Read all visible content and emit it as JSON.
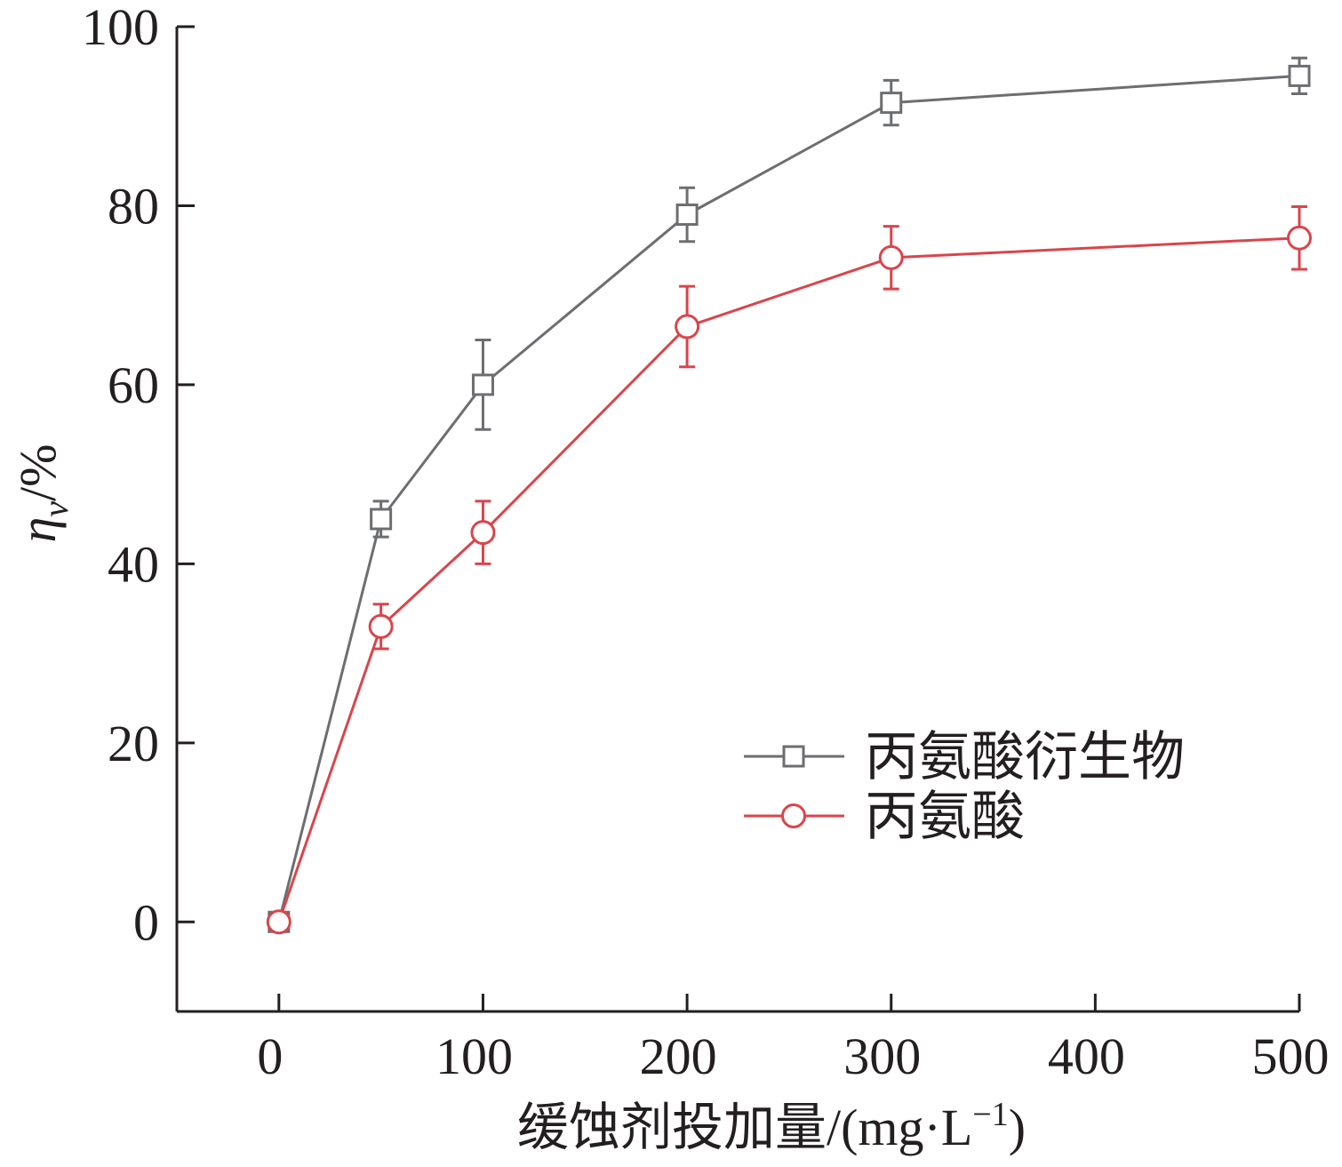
{
  "chart_data": {
    "type": "line",
    "xlabel": "缓蚀剂投加量/(mg·L⁻¹)",
    "ylabel": "ηv/%",
    "ylabel_parts": {
      "symbol": "η",
      "subscript": "v",
      "unit": "/%"
    },
    "xlabel_parts": {
      "main": "缓蚀剂投加量/(mg·L",
      "superscript": "−1",
      "close": ")"
    },
    "x_tick_labels": [
      "0",
      "100",
      "200",
      "300",
      "400",
      "500"
    ],
    "y_ticks": [
      0,
      20,
      40,
      60,
      80,
      100
    ],
    "xlim": [
      -0.5,
      5
    ],
    "ylim": [
      -10,
      100
    ],
    "grid": false,
    "legend_position": "lower-right",
    "series": [
      {
        "name": "丙氨酸衍生物",
        "color": "#6d6e71",
        "marker": "square",
        "x": [
          0,
          0.5,
          1,
          2,
          3,
          5
        ],
        "y": [
          0,
          45,
          60,
          79,
          91.5,
          94.5
        ],
        "err": [
          0,
          2,
          5,
          3,
          2.5,
          2
        ]
      },
      {
        "name": "丙氨酸",
        "color": "#d9454b",
        "marker": "circle",
        "x": [
          0,
          0.5,
          1,
          2,
          3,
          5
        ],
        "y": [
          0,
          33,
          43.5,
          66.5,
          74.2,
          76.4
        ],
        "err": [
          0,
          2.5,
          3.5,
          4.5,
          3.5,
          3.5
        ]
      }
    ]
  }
}
